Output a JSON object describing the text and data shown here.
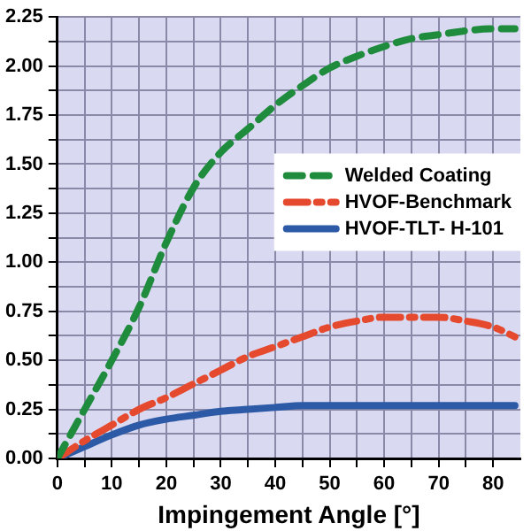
{
  "chart_data": {
    "type": "line",
    "xlabel": "Impingement Angle [°]",
    "x": [
      0,
      5,
      10,
      15,
      20,
      25,
      30,
      35,
      40,
      45,
      50,
      55,
      60,
      65,
      70,
      75,
      80,
      84
    ],
    "series": [
      {
        "name": "Welded Coating",
        "color": "#1e8c3c",
        "line_style": "dashed",
        "values": [
          0,
          0.25,
          0.5,
          0.77,
          1.1,
          1.38,
          1.56,
          1.68,
          1.8,
          1.9,
          1.99,
          2.05,
          2.1,
          2.14,
          2.16,
          2.18,
          2.19,
          2.19
        ]
      },
      {
        "name": "HVOF-Benchmark",
        "color": "#e64a2e",
        "line_style": "dashdot",
        "values": [
          0,
          0.09,
          0.17,
          0.25,
          0.31,
          0.38,
          0.45,
          0.52,
          0.57,
          0.62,
          0.67,
          0.7,
          0.72,
          0.72,
          0.72,
          0.7,
          0.67,
          0.62
        ]
      },
      {
        "name": "HVOF-TLT- H-101",
        "color": "#2d5aa6",
        "line_style": "solid",
        "values": [
          0,
          0.06,
          0.12,
          0.17,
          0.2,
          0.22,
          0.24,
          0.25,
          0.26,
          0.27,
          0.27,
          0.27,
          0.27,
          0.27,
          0.27,
          0.27,
          0.27,
          0.27
        ]
      }
    ],
    "xlim": [
      0,
      85
    ],
    "xticks": [
      0,
      {
        "value": 5,
        "label": null
      },
      10,
      {
        "value": 15,
        "label": null
      },
      20,
      {
        "value": 25,
        "label": null
      },
      30,
      {
        "value": 35,
        "label": null
      },
      40,
      {
        "value": 45,
        "label": null
      },
      50,
      {
        "value": 55,
        "label": null
      },
      60,
      {
        "value": 65,
        "label": null
      },
      70,
      {
        "value": 75,
        "label": null
      },
      80
    ],
    "ylim": [
      0,
      2.25
    ],
    "yticks": [
      {
        "value": 0,
        "label": "0.00"
      },
      {
        "value": 0.125,
        "label": null
      },
      {
        "value": 0.25,
        "label": "0.25"
      },
      {
        "value": 0.375,
        "label": null
      },
      {
        "value": 0.5,
        "label": "0.50"
      },
      {
        "value": 0.625,
        "label": null
      },
      {
        "value": 0.75,
        "label": "0.75"
      },
      {
        "value": 0.875,
        "label": null
      },
      {
        "value": 1,
        "label": "1.00"
      },
      {
        "value": 1.125,
        "label": null
      },
      {
        "value": 1.25,
        "label": "1.25"
      },
      {
        "value": 1.375,
        "label": null
      },
      {
        "value": 1.5,
        "label": "1.50"
      },
      {
        "value": 1.625,
        "label": null
      },
      {
        "value": 1.75,
        "label": "1.75"
      },
      {
        "value": 1.875,
        "label": null
      },
      {
        "value": 2,
        "label": "2.00"
      },
      {
        "value": 2.125,
        "label": null
      },
      {
        "value": 2.25,
        "label": "2.25"
      }
    ],
    "grid": true,
    "legend": "center right",
    "marker": "none"
  }
}
